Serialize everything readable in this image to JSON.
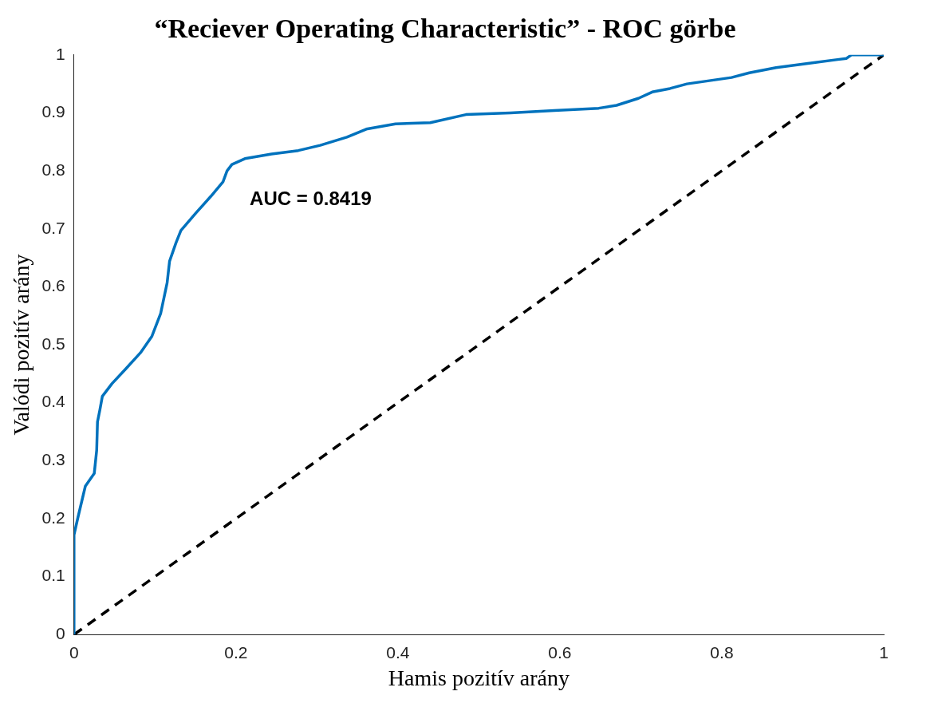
{
  "chart_data": {
    "type": "line",
    "title": "“Reciever Operating Characteristic” - ROC görbe",
    "xlabel": "Hamis pozitív arány",
    "ylabel": "Valódi pozitív arány",
    "annotations": [
      "AUC = 0.8419"
    ],
    "xlim": [
      0,
      1
    ],
    "ylim": [
      0,
      1
    ],
    "xticks": [
      0,
      0.2,
      0.4,
      0.6,
      0.8,
      1
    ],
    "yticks": [
      0,
      0.1,
      0.2,
      0.3,
      0.4,
      0.5,
      0.6,
      0.7,
      0.8,
      0.9,
      1
    ],
    "grid": false,
    "legend": false,
    "marker": "none",
    "series": [
      {
        "color": "#0072bd",
        "line_style": "solid",
        "x": [
          0,
          0,
          0.005,
          0.014,
          0.025,
          0.028,
          0.029,
          0.032,
          0.035,
          0.047,
          0.063,
          0.082,
          0.096,
          0.107,
          0.115,
          0.118,
          0.126,
          0.132,
          0.151,
          0.169,
          0.184,
          0.189,
          0.195,
          0.211,
          0.244,
          0.277,
          0.304,
          0.337,
          0.361,
          0.397,
          0.44,
          0.484,
          0.539,
          0.593,
          0.648,
          0.67,
          0.697,
          0.714,
          0.736,
          0.757,
          0.812,
          0.834,
          0.867,
          0.91,
          0.943,
          0.954,
          0.96,
          1
        ],
        "values": [
          0,
          0.172,
          0.203,
          0.256,
          0.278,
          0.318,
          0.367,
          0.388,
          0.411,
          0.433,
          0.457,
          0.486,
          0.514,
          0.554,
          0.607,
          0.644,
          0.676,
          0.697,
          0.728,
          0.756,
          0.781,
          0.8,
          0.811,
          0.821,
          0.829,
          0.835,
          0.844,
          0.858,
          0.872,
          0.881,
          0.883,
          0.897,
          0.9,
          0.904,
          0.908,
          0.913,
          0.925,
          0.936,
          0.942,
          0.95,
          0.961,
          0.969,
          0.978,
          0.986,
          0.992,
          0.994,
          1,
          1
        ]
      },
      {
        "color": "#000000",
        "line_style": "dashed",
        "x": [
          0,
          1
        ],
        "values": [
          0,
          1
        ]
      }
    ]
  }
}
